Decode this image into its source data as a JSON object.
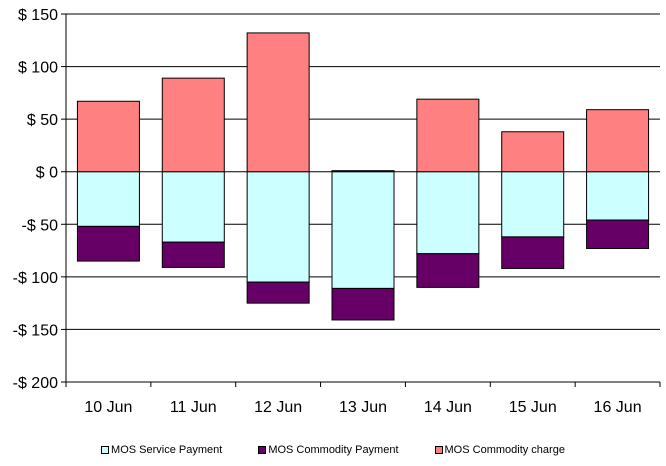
{
  "chart_data": {
    "type": "bar",
    "stacked": true,
    "categories": [
      "10 Jun",
      "11 Jun",
      "12 Jun",
      "13 Jun",
      "14 Jun",
      "15 Jun",
      "16 Jun"
    ],
    "series": [
      {
        "name": "MOS Service Payment",
        "color": "#CCFFFF",
        "values": [
          -52,
          -67,
          -105,
          -111,
          -78,
          -62,
          -46
        ]
      },
      {
        "name": "MOS Commodity Payment",
        "color": "#660066",
        "values": [
          -33,
          -24,
          -20,
          -30,
          -32,
          -30,
          -27
        ]
      },
      {
        "name": "MOS Commodity charge",
        "color": "#FF8080",
        "values": [
          67,
          89,
          132,
          1,
          69,
          38,
          59
        ]
      }
    ],
    "ylim": [
      -200,
      150
    ],
    "yticks": [
      -200,
      -150,
      -100,
      -50,
      0,
      50,
      100,
      150
    ],
    "ytick_labels": [
      "-$ 200",
      "-$ 150",
      "-$ 100",
      "-$ 50",
      "$ 0",
      "$ 50",
      "$ 100",
      "$ 150"
    ],
    "grid": true,
    "legend_position": "bottom"
  }
}
